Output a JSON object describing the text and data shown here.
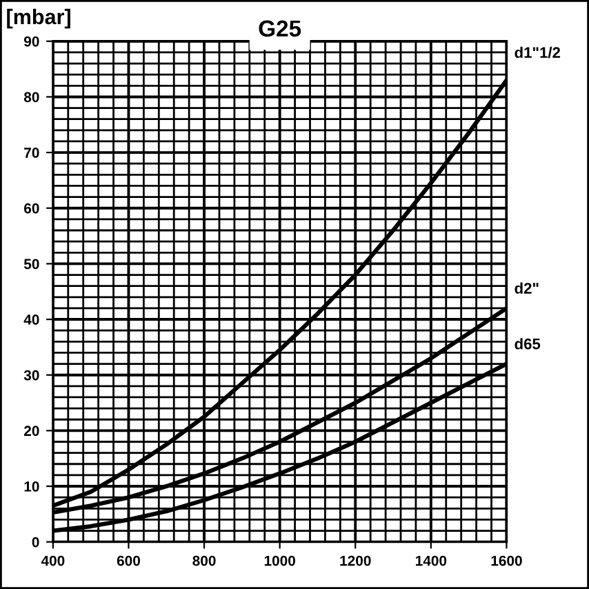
{
  "chart_data": {
    "type": "line",
    "title": "G25",
    "ylabel": "[mbar]",
    "x": [
      400,
      500,
      600,
      700,
      800,
      900,
      1000,
      1100,
      1200,
      1300,
      1400,
      1500,
      1600
    ],
    "series": [
      {
        "name": "d1\"1/2",
        "color": "#000000",
        "values": [
          6.5,
          9,
          13,
          17.5,
          22.5,
          28.5,
          34.5,
          41,
          48,
          56,
          64.5,
          73.5,
          83
        ]
      },
      {
        "name": "d2\"",
        "color": "#000000",
        "values": [
          5.3,
          6.5,
          8,
          10,
          12.3,
          15,
          18,
          21.5,
          25,
          29,
          33,
          37.5,
          42
        ]
      },
      {
        "name": "d65",
        "color": "#000000",
        "values": [
          2,
          2.8,
          4,
          5.5,
          7.5,
          9.8,
          12.3,
          15,
          18,
          21.5,
          25,
          28.5,
          32
        ]
      }
    ],
    "xlim": [
      400,
      1600
    ],
    "ylim": [
      0,
      90
    ],
    "xticks": [
      400,
      600,
      800,
      1000,
      1200,
      1400,
      1600
    ],
    "yticks": [
      0,
      10,
      20,
      30,
      40,
      50,
      60,
      70,
      80,
      90
    ],
    "grid": true,
    "marker": "none",
    "line_style": "solid"
  }
}
